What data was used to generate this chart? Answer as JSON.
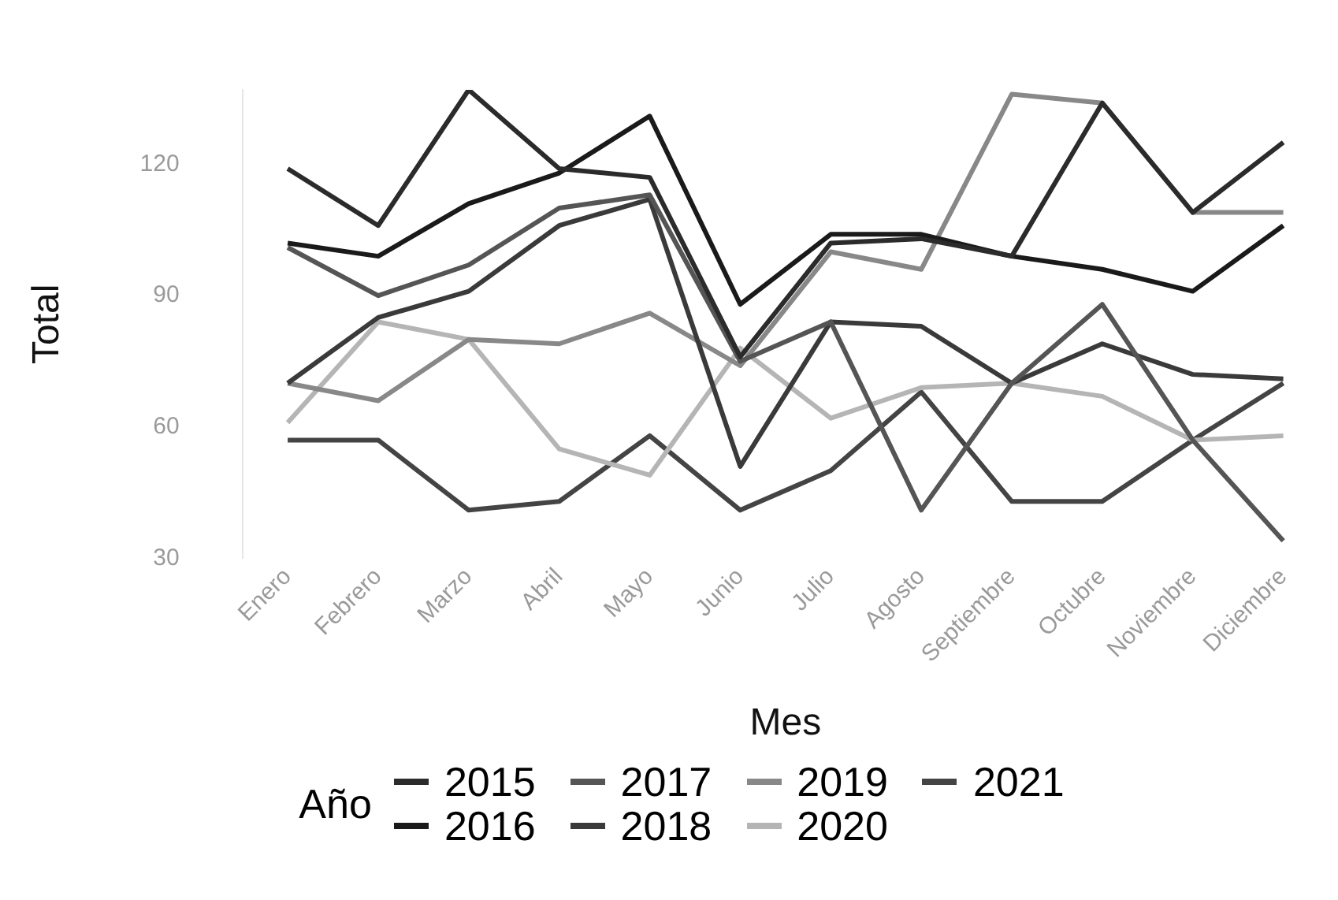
{
  "chart_data": {
    "type": "line",
    "xlabel": "Mes",
    "ylabel": "Total",
    "legend_title": "Año",
    "categories": [
      "Enero",
      "Febrero",
      "Marzo",
      "Abril",
      "Mayo",
      "Junio",
      "Julio",
      "Agosto",
      "Septiembre",
      "Octubre",
      "Noviembre",
      "Diciembre"
    ],
    "series": [
      {
        "name": "2015",
        "color": "#2b2b2b",
        "values": [
          119,
          106,
          137,
          119,
          117,
          76,
          102,
          103,
          99,
          134,
          109,
          125
        ]
      },
      {
        "name": "2016",
        "color": "#1a1a1a",
        "values": [
          102,
          99,
          111,
          118,
          131,
          88,
          104,
          104,
          99,
          96,
          91,
          106
        ]
      },
      {
        "name": "2017",
        "color": "#555555",
        "values": [
          101,
          90,
          97,
          110,
          113,
          75,
          84,
          41,
          70,
          88,
          57,
          34
        ]
      },
      {
        "name": "2018",
        "color": "#3a3a3a",
        "values": [
          70,
          85,
          91,
          106,
          112,
          51,
          84,
          83,
          70,
          79,
          72,
          71
        ]
      },
      {
        "name": "2019",
        "color": "#888888",
        "values": [
          70,
          66,
          80,
          79,
          86,
          74,
          100,
          96,
          136,
          134,
          109,
          109
        ]
      },
      {
        "name": "2020",
        "color": "#b5b5b5",
        "values": [
          61,
          84,
          80,
          55,
          49,
          78,
          62,
          69,
          70,
          67,
          57,
          58
        ]
      },
      {
        "name": "2021",
        "color": "#444444",
        "values": [
          57,
          57,
          41,
          43,
          58,
          41,
          50,
          68,
          43,
          43,
          57,
          70
        ]
      }
    ],
    "ylim": [
      30,
      137
    ],
    "yticks": [
      30,
      60,
      90,
      120
    ],
    "grid": false,
    "legend": "bottom",
    "marker": "none",
    "line_style": "solid"
  }
}
